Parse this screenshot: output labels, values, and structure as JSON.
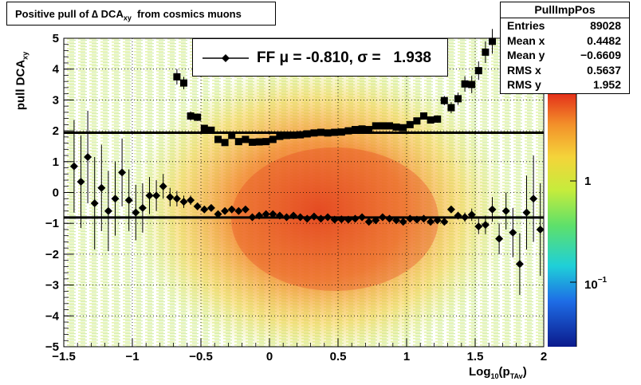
{
  "title": {
    "prefix": "Positive pull of ",
    "delta": "∆",
    "dca": "DCA",
    "sub": "xy",
    "suffix": "from cosmics muons"
  },
  "stats": {
    "name": "PullImpPos",
    "rows": [
      {
        "label": "Entries",
        "value": "89028"
      },
      {
        "label": "Mean x",
        "value": "0.4482"
      },
      {
        "label": "Mean y",
        "value": "−0.6609"
      },
      {
        "label": "RMS x",
        "value": "0.5637"
      },
      {
        "label": "RMS y",
        "value": "1.952"
      }
    ]
  },
  "legend": {
    "text": "FF μ = -0.810, σ =   1.938"
  },
  "axes": {
    "x_title": {
      "main": "Log",
      "sub1": "10",
      "mid": "(p",
      "sub2": "TAv",
      "end": ")"
    },
    "y_title": {
      "main": "pull DCA",
      "sub": "xy"
    },
    "x_ticks": [
      "−1.5",
      "−1",
      "−0.5",
      "0",
      "0.5",
      "1",
      "1.5",
      "2"
    ],
    "y_ticks": [
      "−5",
      "−4",
      "−3",
      "−2",
      "−1",
      "0",
      "1",
      "2",
      "3",
      "4",
      "5"
    ],
    "z_ticks": [
      {
        "label": "1",
        "exp": ""
      },
      {
        "label": "10",
        "exp": "−1"
      }
    ]
  },
  "colors": {
    "sigma_marker": "#000000",
    "mean_marker": "#000000"
  },
  "chart_data": {
    "type": "heatmap",
    "title": "Positive pull of ∆ DCAxy from cosmics muons",
    "xlabel": "Log10(pTAv)",
    "ylabel": "pull DCAxy",
    "xlim": [
      -1.5,
      2
    ],
    "ylim": [
      -5,
      5
    ],
    "z_scale": "log",
    "grid": true,
    "fit_mean": -0.81,
    "fit_sigma": 1.938,
    "sigma_series": {
      "name": "sigma",
      "points": [
        [
          -0.675,
          3.75
        ],
        [
          -0.625,
          3.55
        ],
        [
          -0.575,
          2.48
        ],
        [
          -0.525,
          2.44
        ],
        [
          -0.475,
          2.08
        ],
        [
          -0.425,
          2.02
        ],
        [
          -0.375,
          1.72
        ],
        [
          -0.325,
          1.62
        ],
        [
          -0.275,
          1.85
        ],
        [
          -0.225,
          1.65
        ],
        [
          -0.175,
          1.72
        ],
        [
          -0.125,
          1.63
        ],
        [
          -0.075,
          1.64
        ],
        [
          -0.025,
          1.65
        ],
        [
          0.025,
          1.72
        ],
        [
          0.075,
          1.82
        ],
        [
          0.125,
          1.85
        ],
        [
          0.175,
          1.86
        ],
        [
          0.225,
          1.87
        ],
        [
          0.275,
          1.9
        ],
        [
          0.325,
          1.93
        ],
        [
          0.375,
          1.95
        ],
        [
          0.425,
          1.93
        ],
        [
          0.475,
          1.95
        ],
        [
          0.525,
          1.96
        ],
        [
          0.575,
          2.0
        ],
        [
          0.625,
          2.04
        ],
        [
          0.675,
          2.06
        ],
        [
          0.725,
          2.04
        ],
        [
          0.775,
          2.16
        ],
        [
          0.825,
          2.16
        ],
        [
          0.875,
          2.16
        ],
        [
          0.925,
          2.12
        ],
        [
          0.975,
          2.1
        ],
        [
          1.025,
          2.2
        ],
        [
          1.075,
          2.32
        ],
        [
          1.125,
          2.48
        ],
        [
          1.175,
          2.35
        ],
        [
          1.225,
          2.38
        ],
        [
          1.275,
          2.98
        ],
        [
          1.325,
          2.75
        ],
        [
          1.375,
          3.04
        ],
        [
          1.425,
          3.52
        ],
        [
          1.475,
          3.5
        ],
        [
          1.525,
          3.95
        ],
        [
          1.575,
          4.55
        ],
        [
          1.625,
          4.9
        ]
      ],
      "errors": [
        0.25,
        0.2,
        0.15,
        0.12,
        0.1,
        0.08,
        0.06,
        0.05,
        0.05,
        0.04,
        0.04,
        0.03,
        0.03,
        0.03,
        0.03,
        0.03,
        0.03,
        0.03,
        0.03,
        0.03,
        0.03,
        0.03,
        0.03,
        0.03,
        0.03,
        0.03,
        0.03,
        0.04,
        0.04,
        0.04,
        0.05,
        0.05,
        0.06,
        0.06,
        0.07,
        0.08,
        0.1,
        0.1,
        0.12,
        0.15,
        0.18,
        0.2,
        0.25,
        0.28,
        0.3,
        0.35,
        0.4
      ]
    },
    "mean_series": {
      "name": "mean",
      "points": [
        [
          -1.425,
          0.85
        ],
        [
          -1.375,
          0.35
        ],
        [
          -1.325,
          1.15
        ],
        [
          -1.275,
          -0.35
        ],
        [
          -1.225,
          0.15
        ],
        [
          -1.175,
          -0.6
        ],
        [
          -1.125,
          -0.2
        ],
        [
          -1.075,
          0.65
        ],
        [
          -1.025,
          -0.25
        ],
        [
          -0.975,
          -0.65
        ],
        [
          -0.925,
          -0.5
        ],
        [
          -0.875,
          -0.1
        ],
        [
          -0.825,
          -0.1
        ],
        [
          -0.775,
          0.2
        ],
        [
          -0.725,
          -0.15
        ],
        [
          -0.675,
          -0.2
        ],
        [
          -0.625,
          -0.3
        ],
        [
          -0.575,
          -0.25
        ],
        [
          -0.525,
          -0.45
        ],
        [
          -0.475,
          -0.55
        ],
        [
          -0.425,
          -0.5
        ],
        [
          -0.375,
          -0.7
        ],
        [
          -0.325,
          -0.6
        ],
        [
          -0.275,
          -0.55
        ],
        [
          -0.225,
          -0.6
        ],
        [
          -0.175,
          -0.55
        ],
        [
          -0.125,
          -0.8
        ],
        [
          -0.075,
          -0.75
        ],
        [
          -0.025,
          -0.7
        ],
        [
          0.025,
          -0.7
        ],
        [
          0.075,
          -0.75
        ],
        [
          0.125,
          -0.8
        ],
        [
          0.175,
          -0.75
        ],
        [
          0.225,
          -0.8
        ],
        [
          0.275,
          -0.85
        ],
        [
          0.325,
          -0.78
        ],
        [
          0.375,
          -0.85
        ],
        [
          0.425,
          -0.8
        ],
        [
          0.475,
          -0.88
        ],
        [
          0.525,
          -0.87
        ],
        [
          0.575,
          -0.88
        ],
        [
          0.625,
          -0.85
        ],
        [
          0.675,
          -0.8
        ],
        [
          0.725,
          -0.95
        ],
        [
          0.775,
          -0.9
        ],
        [
          0.825,
          -0.8
        ],
        [
          0.875,
          -0.85
        ],
        [
          0.925,
          -0.9
        ],
        [
          0.975,
          -0.95
        ],
        [
          1.025,
          -0.85
        ],
        [
          1.075,
          -0.88
        ],
        [
          1.125,
          -0.85
        ],
        [
          1.175,
          -0.95
        ],
        [
          1.225,
          -0.9
        ],
        [
          1.275,
          -0.95
        ],
        [
          1.325,
          -0.55
        ],
        [
          1.375,
          -0.75
        ],
        [
          1.425,
          -0.8
        ],
        [
          1.475,
          -0.72
        ],
        [
          1.525,
          -1.1
        ],
        [
          1.575,
          -1.05
        ],
        [
          1.625,
          -0.55
        ],
        [
          1.675,
          -1.5
        ],
        [
          1.725,
          -0.6
        ],
        [
          1.775,
          -1.3
        ],
        [
          1.825,
          -2.32
        ],
        [
          1.875,
          -0.65
        ],
        [
          1.925,
          -0.2
        ],
        [
          1.975,
          -1.2
        ]
      ],
      "errors": [
        1.5,
        1.5,
        1.5,
        1.5,
        1.4,
        1.3,
        1.2,
        1.1,
        1.0,
        0.9,
        0.8,
        0.6,
        0.5,
        0.4,
        0.3,
        0.25,
        0.2,
        0.15,
        0.12,
        0.1,
        0.1,
        0.08,
        0.06,
        0.05,
        0.05,
        0.04,
        0.04,
        0.03,
        0.03,
        0.03,
        0.03,
        0.03,
        0.03,
        0.03,
        0.03,
        0.03,
        0.03,
        0.03,
        0.03,
        0.03,
        0.03,
        0.03,
        0.03,
        0.03,
        0.03,
        0.03,
        0.04,
        0.04,
        0.04,
        0.05,
        0.05,
        0.06,
        0.06,
        0.07,
        0.08,
        0.1,
        0.12,
        0.15,
        0.2,
        0.25,
        0.3,
        0.4,
        0.5,
        0.6,
        0.8,
        1.0,
        1.2,
        1.4,
        1.5
      ]
    }
  }
}
